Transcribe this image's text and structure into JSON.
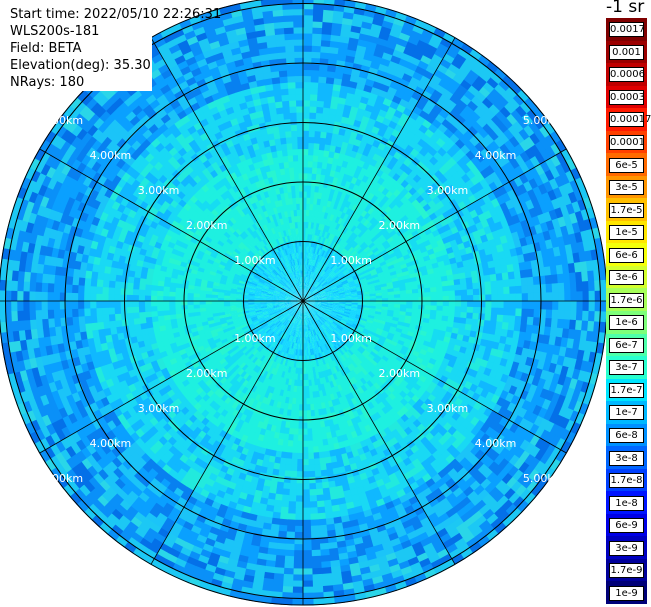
{
  "info": {
    "start_time": "Start time: 2022/05/10 22:26:31",
    "instrument": "WLS200s-181",
    "field": "Field: BETA",
    "elevation": "Elevation(deg): 35.30",
    "nrays": "NRays: 180"
  },
  "colorbar": {
    "unit_title": "-1 sr",
    "labels": [
      "0.0017",
      "0.001",
      "0.0006",
      "0.0003",
      "0.00017",
      "0.0001",
      "6e-5",
      "3e-5",
      "1.7e-5",
      "1e-5",
      "6e-6",
      "3e-6",
      "1.7e-6",
      "1e-6",
      "6e-7",
      "3e-7",
      "1.7e-7",
      "1e-7",
      "6e-8",
      "3e-8",
      "1.7e-8",
      "1e-8",
      "6e-9",
      "3e-9",
      "1.7e-9",
      "1e-9"
    ],
    "colors": [
      "#7f0000",
      "#9b0000",
      "#c00000",
      "#e00000",
      "#ff1a00",
      "#ff4000",
      "#ff6a00",
      "#ff9500",
      "#ffbf00",
      "#ffe600",
      "#f4ff0a",
      "#d2ff2d",
      "#a6ff59",
      "#7dff7a",
      "#4dffaa",
      "#29ffcf",
      "#00e5ff",
      "#00b8ff",
      "#0090ff",
      "#0066ff",
      "#0040ff",
      "#0014ff",
      "#0000e6",
      "#0000c0",
      "#00009b",
      "#000078"
    ]
  },
  "ppi": {
    "range_unit": "km",
    "ring_labels": [
      "1.00km",
      "2.00km",
      "3.00km",
      "4.00km",
      "5.00km"
    ],
    "spoke_count": 12,
    "nrays": 180
  }
}
